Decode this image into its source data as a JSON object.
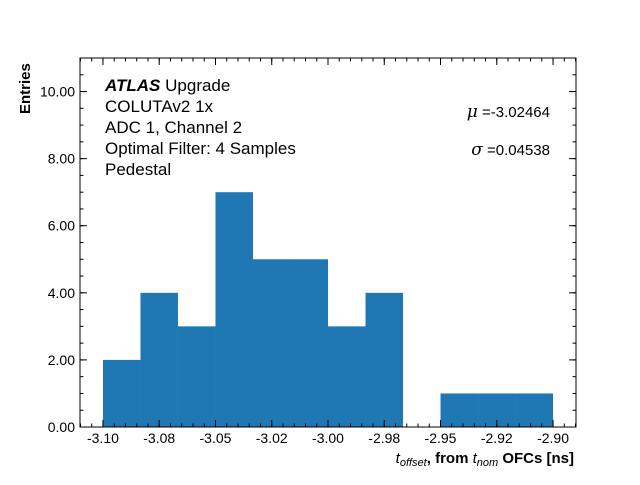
{
  "chart_data": {
    "type": "bar",
    "subtype": "histogram",
    "bin_edges": [
      -3.1,
      -3.08333,
      -3.06667,
      -3.05,
      -3.03333,
      -3.01667,
      -3.0,
      -2.98333,
      -2.96667,
      -2.95,
      -2.93333,
      -2.91667,
      -2.9
    ],
    "values": [
      2,
      4,
      3,
      7,
      5,
      5,
      3,
      4,
      0,
      1,
      1,
      1
    ],
    "color": "#1f77b4",
    "xlim": [
      -3.1102,
      -2.8898
    ],
    "ylim": [
      0,
      11
    ],
    "x_ticks": [
      -3.1,
      -3.075,
      -3.05,
      -3.025,
      -3.0,
      -2.975,
      -2.95,
      -2.925,
      -2.9
    ],
    "x_tick_labels": [
      "-3.10",
      "-3.08",
      "-3.05",
      "-3.02",
      "-3.00",
      "-2.98",
      "-2.95",
      "-2.92",
      "-2.90"
    ],
    "y_ticks": [
      0,
      2,
      4,
      6,
      8,
      10
    ],
    "y_tick_labels": [
      "0.00",
      "2.00",
      "4.00",
      "6.00",
      "8.00",
      "10.00"
    ],
    "xlabel": {
      "t": "t",
      "sub1": "offset",
      "mid": ", from ",
      "t2": "t",
      "sub2": "nom",
      "end": " OFCs [ns]"
    },
    "ylabel": "Entries",
    "grid": false,
    "annotations": {
      "atlas": "ATLAS",
      "upgrade": " Upgrade",
      "line2": "COLUTAv2 1x",
      "line3": "ADC 1, Channel 2",
      "line4": "Optimal Filter: 4 Samples",
      "line5": "Pedestal",
      "mu_symbol": "μ",
      "mu_value": " =-3.02464",
      "sigma_symbol": "σ",
      "sigma_value": " =0.04538"
    }
  }
}
